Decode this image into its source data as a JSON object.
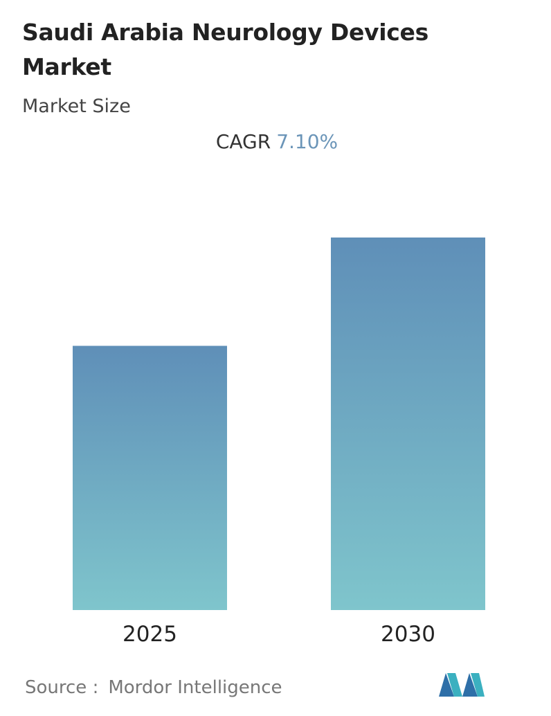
{
  "chart_data": {
    "type": "bar",
    "title": "Saudi Arabia Neurology Devices Market",
    "subtitle": "Market Size",
    "cagr": {
      "label": "CAGR",
      "value": "7.10%"
    },
    "categories": [
      "2025",
      "2030"
    ],
    "values": [
      100,
      141
    ],
    "color": [
      "#5f8fb8",
      "#7fc5cc"
    ],
    "source": {
      "label": "Source :",
      "name": "Mordor Intelligence"
    }
  }
}
